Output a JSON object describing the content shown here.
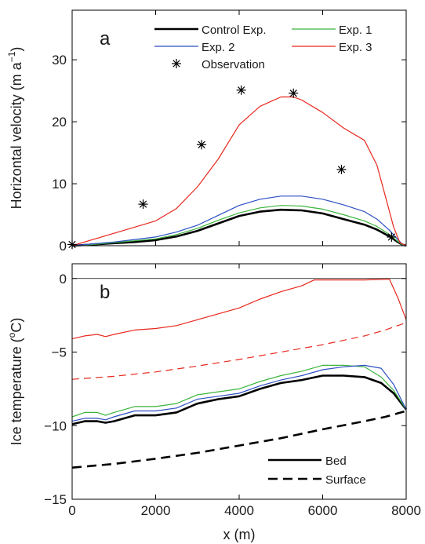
{
  "chart_data": [
    {
      "type": "line",
      "panel_label": "a",
      "ylabel": "Horizontal velocity (m a",
      "ylabel_sup": "−1",
      "ylabel_close": ")",
      "xlim": [
        0,
        8000
      ],
      "ylim": [
        0,
        38
      ],
      "yticks": [
        0,
        10,
        20,
        30
      ],
      "ytick_labels": [
        "0",
        "10",
        "20",
        "30"
      ],
      "legend": [
        {
          "label": "Control Exp.",
          "series": "control"
        },
        {
          "label": "Exp. 1",
          "series": "exp1"
        },
        {
          "label": "Exp. 2",
          "series": "exp2"
        },
        {
          "label": "Exp. 3",
          "series": "exp3"
        },
        {
          "label": "Observation",
          "series": "obs"
        }
      ],
      "series": [
        {
          "id": "control",
          "name": "Control Exp.",
          "color": "#000000",
          "width": 2.6,
          "x": [
            0,
            500,
            1000,
            1500,
            2000,
            2500,
            3000,
            3500,
            4000,
            4500,
            5000,
            5500,
            6000,
            6500,
            7000,
            7300,
            7600,
            7800,
            7900,
            8000
          ],
          "y": [
            0,
            0.2,
            0.4,
            0.6,
            0.9,
            1.5,
            2.4,
            3.6,
            4.8,
            5.5,
            5.8,
            5.7,
            5.2,
            4.3,
            3.4,
            2.6,
            1.5,
            0.6,
            0.2,
            0
          ]
        },
        {
          "id": "exp1",
          "name": "Exp. 1",
          "color": "#3cb43c",
          "width": 1.2,
          "x": [
            0,
            500,
            1000,
            1500,
            2000,
            2500,
            3000,
            3500,
            4000,
            4500,
            5000,
            5500,
            6000,
            6500,
            7000,
            7300,
            7600,
            7800,
            7900,
            8000
          ],
          "y": [
            0,
            0.2,
            0.5,
            0.8,
            1.1,
            1.8,
            2.8,
            4.1,
            5.3,
            6.1,
            6.5,
            6.4,
            5.9,
            5.0,
            4.0,
            3.1,
            1.8,
            0.7,
            0.2,
            0
          ]
        },
        {
          "id": "exp2",
          "name": "Exp. 2",
          "color": "#2d4fc4",
          "width": 1.2,
          "x": [
            0,
            500,
            1000,
            1500,
            2000,
            2500,
            3000,
            3500,
            4000,
            4500,
            5000,
            5500,
            6000,
            6500,
            7000,
            7300,
            7600,
            7800,
            7900,
            8000
          ],
          "y": [
            0,
            0.3,
            0.6,
            1.0,
            1.4,
            2.2,
            3.3,
            4.9,
            6.5,
            7.5,
            8.0,
            8.0,
            7.5,
            6.6,
            5.5,
            4.3,
            2.5,
            1.0,
            0.3,
            0
          ]
        },
        {
          "id": "exp3",
          "name": "Exp. 3",
          "color": "#e8281e",
          "width": 1.2,
          "x": [
            0,
            500,
            1000,
            1500,
            2000,
            2500,
            3000,
            3500,
            4000,
            4500,
            5000,
            5300,
            5500,
            6000,
            6500,
            7000,
            7300,
            7500,
            7700,
            7850,
            8000
          ],
          "y": [
            0,
            1.0,
            2.0,
            3.0,
            4.0,
            6.0,
            9.5,
            14.0,
            19.5,
            22.5,
            24.0,
            24.0,
            23.5,
            21.5,
            19.0,
            17.0,
            13.0,
            8.0,
            3.0,
            0.5,
            0
          ]
        },
        {
          "id": "obs",
          "name": "Observation",
          "color": "#000000",
          "marker": "asterisk",
          "x": [
            0,
            1700,
            3100,
            4050,
            5300,
            6450,
            7650
          ],
          "y": [
            0.2,
            6.7,
            16.3,
            25.1,
            24.6,
            12.3,
            1.4
          ]
        }
      ]
    },
    {
      "type": "line",
      "panel_label": "b",
      "xlabel": "x (m)",
      "ylabel": "Ice temperature (",
      "ylabel_sup": "o",
      "ylabel_close": "C)",
      "xlim": [
        0,
        8000
      ],
      "ylim": [
        -15,
        1
      ],
      "xticks": [
        0,
        2000,
        4000,
        6000,
        8000
      ],
      "xtick_labels": [
        "0",
        "2000",
        "4000",
        "6000",
        "8000"
      ],
      "yticks": [
        -15,
        -10,
        -5,
        0
      ],
      "ytick_labels": [
        "−15",
        "−10",
        "−5",
        "0"
      ],
      "zero_line": 0,
      "legend": [
        {
          "label": "Bed",
          "dash": "solid"
        },
        {
          "label": "Surface",
          "dash": "dashed"
        }
      ],
      "series": [
        {
          "id": "control_bed",
          "name": "Control Exp.",
          "color": "#000000",
          "width": 2.6,
          "dash": "solid",
          "x": [
            0,
            300,
            600,
            800,
            1000,
            1500,
            2000,
            2500,
            3000,
            3500,
            4000,
            4500,
            5000,
            5500,
            6000,
            6500,
            7000,
            7400,
            7700,
            8000
          ],
          "y": [
            -9.9,
            -9.7,
            -9.7,
            -9.8,
            -9.7,
            -9.3,
            -9.3,
            -9.1,
            -8.5,
            -8.2,
            -8.0,
            -7.5,
            -7.1,
            -6.9,
            -6.6,
            -6.6,
            -6.7,
            -7.1,
            -7.8,
            -8.9
          ]
        },
        {
          "id": "exp1_bed",
          "name": "Exp. 1",
          "color": "#3cb43c",
          "width": 1.2,
          "dash": "solid",
          "x": [
            0,
            300,
            600,
            800,
            1000,
            1500,
            2000,
            2500,
            3000,
            3500,
            4000,
            4500,
            5000,
            5500,
            6000,
            6500,
            7000,
            7400,
            7700,
            8000
          ],
          "y": [
            -9.4,
            -9.1,
            -9.1,
            -9.3,
            -9.1,
            -8.7,
            -8.7,
            -8.5,
            -7.9,
            -7.7,
            -7.5,
            -7.0,
            -6.6,
            -6.3,
            -5.9,
            -5.9,
            -6.0,
            -6.7,
            -7.6,
            -8.9
          ]
        },
        {
          "id": "exp2_bed",
          "name": "Exp. 2",
          "color": "#2d4fc4",
          "width": 1.2,
          "dash": "solid",
          "x": [
            0,
            300,
            600,
            800,
            1000,
            1500,
            2000,
            2500,
            3000,
            3500,
            4000,
            4500,
            5000,
            5500,
            6000,
            6500,
            7000,
            7400,
            7700,
            8000
          ],
          "y": [
            -9.7,
            -9.5,
            -9.5,
            -9.6,
            -9.4,
            -9.0,
            -9.0,
            -8.8,
            -8.2,
            -8.0,
            -7.8,
            -7.3,
            -6.9,
            -6.6,
            -6.2,
            -6.0,
            -5.9,
            -6.1,
            -7.2,
            -8.9
          ]
        },
        {
          "id": "exp3_bed",
          "name": "Exp. 3",
          "color": "#e8281e",
          "width": 1.2,
          "dash": "solid",
          "x": [
            0,
            300,
            600,
            800,
            1000,
            1500,
            2000,
            2500,
            3000,
            3500,
            4000,
            4500,
            5000,
            5500,
            5800,
            6500,
            7000,
            7600,
            7800,
            8000
          ],
          "y": [
            -4.1,
            -3.9,
            -3.8,
            -3.95,
            -3.8,
            -3.5,
            -3.4,
            -3.2,
            -2.8,
            -2.4,
            -2.0,
            -1.4,
            -0.9,
            -0.5,
            -0.1,
            -0.1,
            -0.1,
            -0.05,
            -1.3,
            -2.8
          ]
        },
        {
          "id": "exp3_surface",
          "name": "Exp. 3",
          "color": "#e8281e",
          "width": 1.2,
          "dash": "dashed",
          "x": [
            0,
            1000,
            2000,
            3000,
            4000,
            5000,
            6000,
            7000,
            7500,
            8000
          ],
          "y": [
            -6.85,
            -6.65,
            -6.35,
            -5.95,
            -5.5,
            -5.0,
            -4.5,
            -3.9,
            -3.5,
            -3.0
          ]
        },
        {
          "id": "control_surface",
          "name": "Control Exp.",
          "color": "#000000",
          "width": 2.6,
          "dash": "dashed",
          "x": [
            0,
            1000,
            2000,
            3000,
            4000,
            5000,
            6000,
            7000,
            7500,
            8000
          ],
          "y": [
            -12.85,
            -12.6,
            -12.25,
            -11.85,
            -11.35,
            -10.85,
            -10.25,
            -9.7,
            -9.4,
            -9.0
          ]
        }
      ]
    }
  ]
}
